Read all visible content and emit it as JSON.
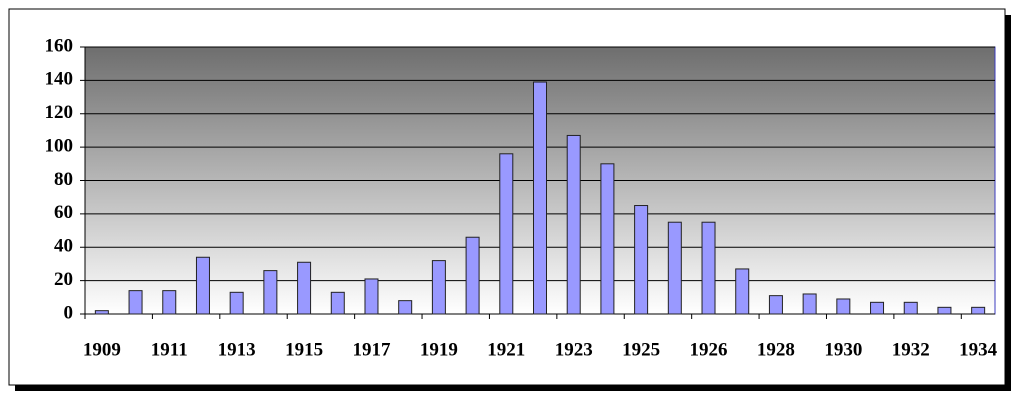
{
  "chart_data": {
    "type": "bar",
    "categories": [
      "1909",
      null,
      "1911",
      null,
      "1913",
      null,
      "1915",
      null,
      "1917",
      null,
      "1919",
      null,
      "1921",
      null,
      "1923",
      null,
      "1925",
      null,
      "1926",
      null,
      "1928",
      null,
      "1930",
      null,
      "1932",
      null,
      "1934"
    ],
    "values": [
      2,
      14,
      14,
      34,
      13,
      26,
      31,
      13,
      21,
      8,
      32,
      46,
      96,
      139,
      107,
      90,
      65,
      55,
      55,
      27,
      11,
      12,
      9,
      7,
      7,
      4,
      4
    ],
    "color": "#9999ff",
    "ylim": [
      0,
      160
    ],
    "yticks": [
      0,
      20,
      40,
      60,
      80,
      100,
      120,
      140,
      160
    ],
    "grid": true
  }
}
